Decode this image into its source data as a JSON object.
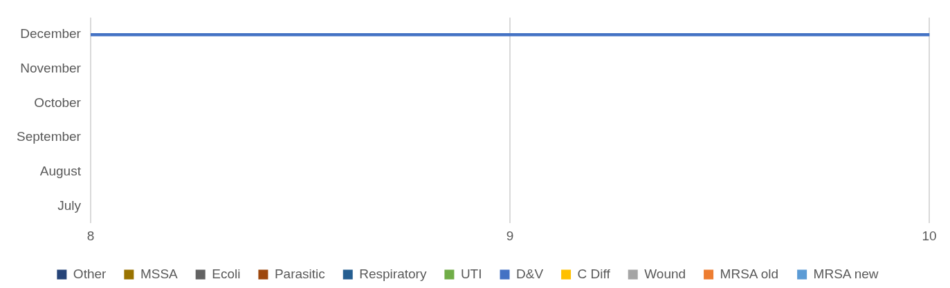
{
  "chart_data": {
    "type": "bar",
    "orientation": "horizontal",
    "stacked": true,
    "categories": [
      "December",
      "November",
      "October",
      "September",
      "August",
      "July"
    ],
    "series": [
      {
        "name": "Other",
        "color": "#264478",
        "values": [
          null,
          null,
          null,
          null,
          null,
          null
        ]
      },
      {
        "name": "MSSA",
        "color": "#997300",
        "values": [
          null,
          null,
          null,
          null,
          null,
          null
        ]
      },
      {
        "name": "Ecoli",
        "color": "#636363",
        "values": [
          null,
          null,
          null,
          null,
          null,
          null
        ]
      },
      {
        "name": "Parasitic",
        "color": "#9e480e",
        "values": [
          null,
          null,
          null,
          null,
          null,
          null
        ]
      },
      {
        "name": "Respiratory",
        "color": "#255e91",
        "values": [
          null,
          null,
          null,
          null,
          null,
          null
        ]
      },
      {
        "name": "UTI",
        "color": "#70ad47",
        "values": [
          null,
          null,
          null,
          null,
          null,
          null
        ]
      },
      {
        "name": "D&V",
        "color": "#4472c4",
        "values": [
          10,
          null,
          null,
          null,
          null,
          null
        ]
      },
      {
        "name": "C Diff",
        "color": "#ffc000",
        "values": [
          null,
          null,
          null,
          null,
          null,
          null
        ]
      },
      {
        "name": "Wound",
        "color": "#a5a5a5",
        "values": [
          null,
          null,
          null,
          null,
          null,
          null
        ]
      },
      {
        "name": "MRSA old",
        "color": "#ed7d31",
        "values": [
          null,
          null,
          null,
          null,
          null,
          null
        ]
      },
      {
        "name": "MRSA new",
        "color": "#5b9bd5",
        "values": [
          null,
          null,
          null,
          null,
          null,
          null
        ]
      }
    ],
    "xlim": [
      8,
      10
    ],
    "xticks": [
      8,
      9,
      10
    ],
    "grid": "x",
    "legend": "bottom"
  }
}
